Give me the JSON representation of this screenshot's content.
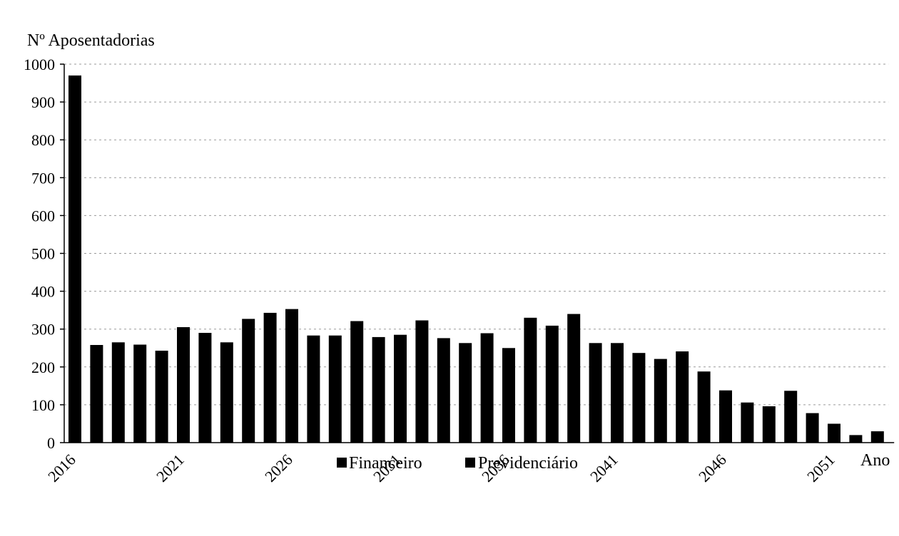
{
  "chart_data": {
    "type": "bar",
    "ylabel": "Nº Aposentadorias",
    "xlabel": "Ano",
    "ylim": [
      0,
      1000
    ],
    "yticks": [
      0,
      100,
      200,
      300,
      400,
      500,
      600,
      700,
      800,
      900,
      1000
    ],
    "xtick_labels": [
      "2016",
      "2021",
      "2026",
      "2031",
      "2036",
      "2041",
      "2046",
      "2051"
    ],
    "grid": true,
    "legend_position": "bottom-center",
    "bar_color": "#000000",
    "categories": [
      "2016",
      "2017",
      "2018",
      "2019",
      "2020",
      "2021",
      "2022",
      "2023",
      "2024",
      "2025",
      "2026",
      "2027",
      "2028",
      "2029",
      "2030",
      "2031",
      "2032",
      "2033",
      "2034",
      "2035",
      "2036",
      "2037",
      "2038",
      "2039",
      "2040",
      "2041",
      "2042",
      "2043",
      "2044",
      "2045",
      "2046",
      "2047",
      "2048",
      "2049",
      "2050",
      "2051",
      "2052",
      "2053"
    ],
    "values": [
      970,
      258,
      265,
      259,
      243,
      305,
      290,
      265,
      327,
      343,
      353,
      283,
      283,
      321,
      279,
      285,
      323,
      276,
      263,
      289,
      250,
      330,
      309,
      340,
      263,
      263,
      237,
      221,
      241,
      188,
      138,
      106,
      96,
      137,
      78,
      50,
      20,
      30
    ],
    "legend": [
      "Financeiro",
      "Previdenciário"
    ]
  }
}
